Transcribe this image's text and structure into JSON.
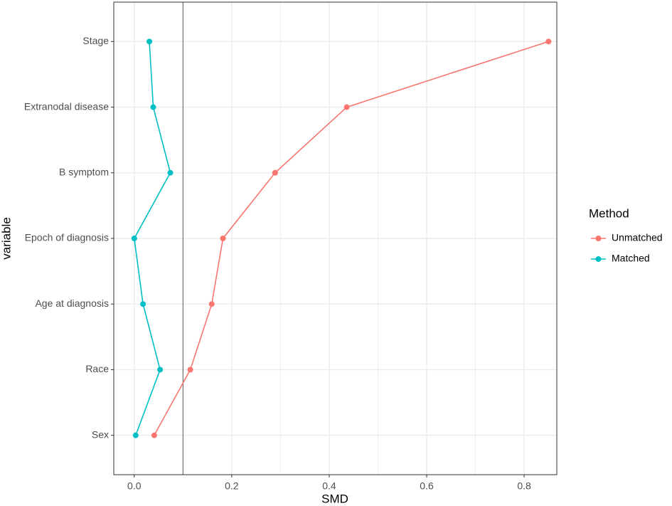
{
  "chart_data": {
    "type": "line",
    "orientation": "horizontal",
    "x_label": "SMD",
    "y_label": "variable",
    "legend_title": "Method",
    "categories": [
      "Sex",
      "Race",
      "Age at diagnosis",
      "Epoch of diagnosis",
      "B symptom",
      "Extranodal disease",
      "Stage"
    ],
    "series": [
      {
        "name": "Unmatched",
        "color": "#F8766D",
        "values": [
          0.041,
          0.115,
          0.159,
          0.182,
          0.289,
          0.436,
          0.85
        ]
      },
      {
        "name": "Matched",
        "color": "#00BFC4",
        "values": [
          0.003,
          0.053,
          0.018,
          0.0,
          0.074,
          0.039,
          0.031
        ]
      }
    ],
    "xlim": [
      -0.042,
      0.867
    ],
    "xticks": [
      {
        "value": 0,
        "label": "0.0"
      },
      0.2,
      0.4,
      0.6,
      0.8
    ],
    "xminorticks": [
      0.1,
      0.3,
      0.5,
      0.7
    ],
    "reference_line": 0.1,
    "grid": true,
    "legend": "right"
  }
}
